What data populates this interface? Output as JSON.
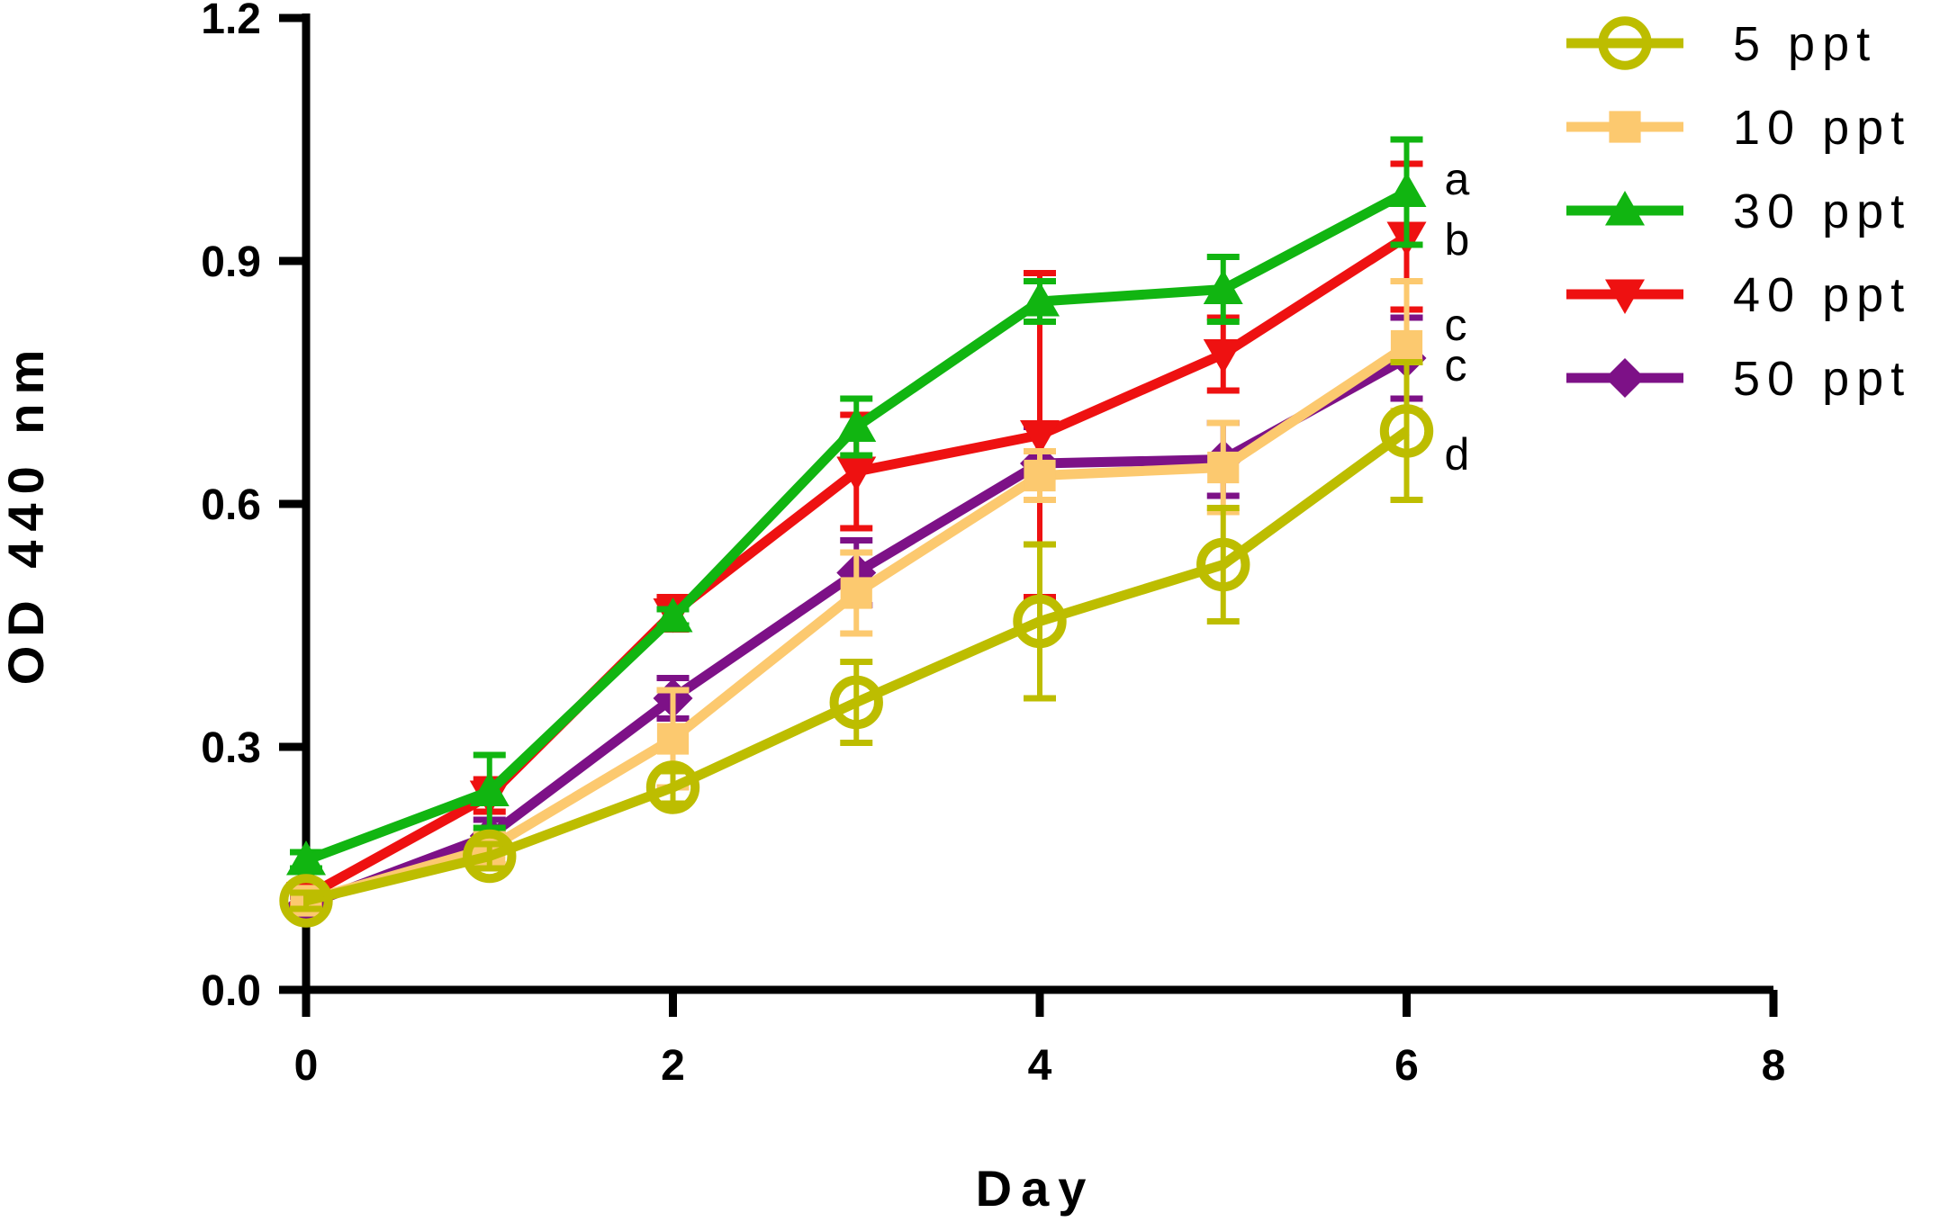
{
  "chart_data": {
    "type": "line",
    "xlabel": "Day",
    "ylabel": "OD 440 nm",
    "xlim": [
      0,
      8
    ],
    "ylim": [
      0,
      1.2
    ],
    "x_ticks": [
      0,
      2,
      4,
      6,
      8
    ],
    "x_tick_labels": [
      "0",
      "2",
      "4",
      "6",
      "8"
    ],
    "y_ticks": [
      0,
      0.3,
      0.6,
      0.9,
      1.2
    ],
    "y_tick_labels": [
      "0.0",
      "0.3",
      "0.6",
      "0.9",
      "1.2"
    ],
    "legend_position": "top-right",
    "x": [
      0,
      1,
      2,
      3,
      4,
      5,
      6
    ],
    "series": [
      {
        "name": "5 ppt",
        "marker": "circle-open",
        "color": "#bdbd00",
        "values": [
          0.11,
          0.165,
          0.25,
          0.355,
          0.455,
          0.525,
          0.69
        ],
        "errors": [
          0.01,
          0.015,
          0.02,
          0.05,
          0.095,
          0.07,
          0.085
        ]
      },
      {
        "name": "10 ppt",
        "marker": "square",
        "color": "#fcc96f",
        "values": [
          0.11,
          0.175,
          0.31,
          0.49,
          0.635,
          0.645,
          0.795
        ],
        "errors": [
          0.01,
          0.02,
          0.06,
          0.05,
          0.03,
          0.055,
          0.08
        ]
      },
      {
        "name": "30 ppt",
        "marker": "triangle-up",
        "color": "#11b511",
        "values": [
          0.16,
          0.245,
          0.46,
          0.695,
          0.85,
          0.865,
          0.985
        ],
        "errors": [
          0.01,
          0.045,
          0.01,
          0.035,
          0.025,
          0.04,
          0.065
        ]
      },
      {
        "name": "40 ppt",
        "marker": "triangle-down",
        "color": "#ee1111",
        "values": [
          0.115,
          0.24,
          0.465,
          0.64,
          0.685,
          0.785,
          0.93
        ],
        "errors": [
          0.01,
          0.02,
          0.02,
          0.07,
          0.2,
          0.045,
          0.09
        ]
      },
      {
        "name": "50 ppt",
        "marker": "diamond",
        "color": "#7d1187",
        "values": [
          0.105,
          0.19,
          0.36,
          0.515,
          0.65,
          0.655,
          0.78
        ],
        "errors": [
          0.01,
          0.02,
          0.025,
          0.04,
          0.045,
          0.045,
          0.05
        ]
      }
    ],
    "annotations": [
      {
        "text": "a",
        "x": 6,
        "y": 1.0
      },
      {
        "text": "b",
        "x": 6,
        "y": 0.925
      },
      {
        "text": "c",
        "x": 6,
        "y": 0.82
      },
      {
        "text": "c",
        "x": 6,
        "y": 0.77
      },
      {
        "text": "d",
        "x": 6,
        "y": 0.66
      }
    ]
  }
}
